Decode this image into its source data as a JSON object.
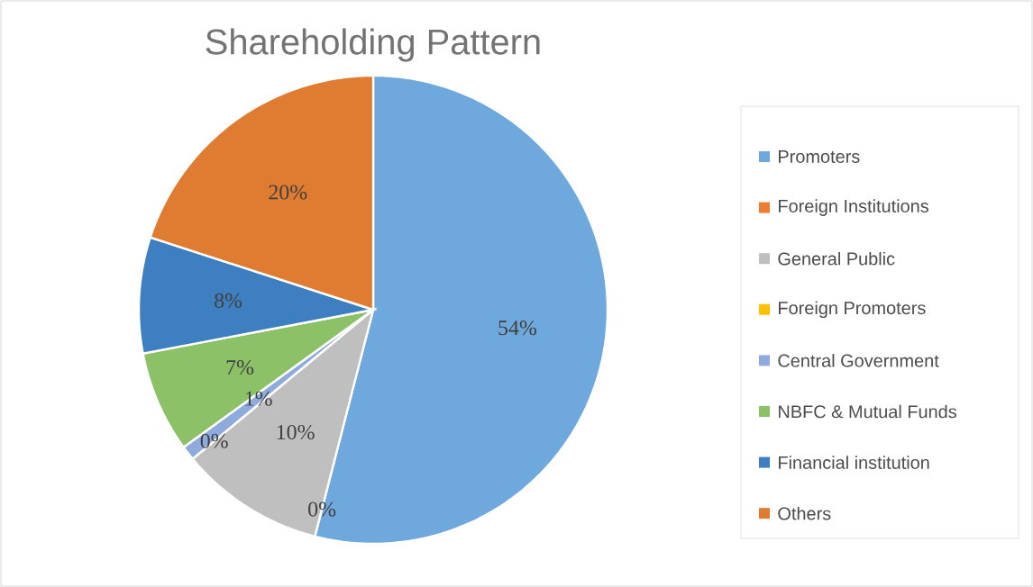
{
  "chart_data": {
    "type": "pie",
    "title": "Shareholding Pattern",
    "categories": [
      "Promoters",
      "Foreign Institutions",
      "General Public",
      "Foreign Promoters",
      "Central Government",
      "NBFC & Mutual Funds",
      "Financial institution",
      "Others"
    ],
    "values": [
      54,
      0,
      10,
      0,
      1,
      7,
      8,
      20
    ],
    "value_labels": [
      "54%",
      "0%",
      "10%",
      "0%",
      "1%",
      "7%",
      "8%",
      "20%"
    ],
    "colors": [
      "#6fa8dc",
      "#ed7d31",
      "#bfbfbf",
      "#ffc000",
      "#8faadc",
      "#8cc168",
      "#3d7fc1",
      "#e07b32"
    ],
    "legend": "right"
  }
}
